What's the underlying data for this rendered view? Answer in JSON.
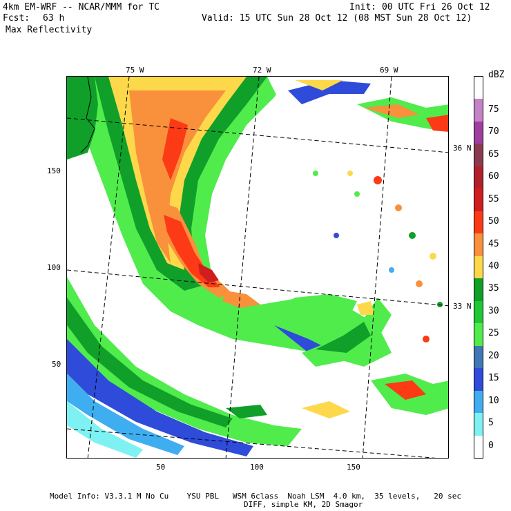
{
  "header": {
    "model_line": "4km EM-WRF -- NCAR/MMM for TC",
    "forecast_label": "Fcst:",
    "forecast_value": "63 h",
    "init": "Init: 00 UTC Fri 26 Oct 12",
    "valid": "Valid: 15 UTC Sun 28 Oct 12 (08 MST Sun 28 Oct 12)",
    "field": "Max Reflectivity"
  },
  "axes": {
    "x_ticks": [
      "50",
      "100",
      "150"
    ],
    "y_ticks": [
      "150",
      "100",
      "50"
    ],
    "lon_labels": [
      "75 W",
      "72 W",
      "69 W"
    ],
    "lat_labels": [
      "36 N",
      "33 N"
    ]
  },
  "colorbar": {
    "unit": "dBZ",
    "levels": [
      {
        "label": "75",
        "color": "#c682c6"
      },
      {
        "label": "70",
        "color": "#9d3ea0"
      },
      {
        "label": "65",
        "color": "#8b3b50"
      },
      {
        "label": "60",
        "color": "#b2202b"
      },
      {
        "label": "55",
        "color": "#d01d1d"
      },
      {
        "label": "50",
        "color": "#fc3a16"
      },
      {
        "label": "45",
        "color": "#f9903c"
      },
      {
        "label": "40",
        "color": "#fdd84b"
      },
      {
        "label": "35",
        "color": "#10a02a"
      },
      {
        "label": "30",
        "color": "#1ec935"
      },
      {
        "label": "25",
        "color": "#50ec4c"
      },
      {
        "label": "20",
        "color": "#3f78b4"
      },
      {
        "label": "15",
        "color": "#2f4bd9"
      },
      {
        "label": "10",
        "color": "#3faef0"
      },
      {
        "label": "5",
        "color": "#7ef2f2"
      },
      {
        "label": "0",
        "color": "#ffffff"
      }
    ]
  },
  "footer": {
    "line1": "Model Info: V3.3.1 M No Cu    YSU PBL   WSM 6class  Noah LSM  4.0 km,  35 levels,   20 sec",
    "line2": "DIFF, simple KM, 2D Smagor"
  }
}
